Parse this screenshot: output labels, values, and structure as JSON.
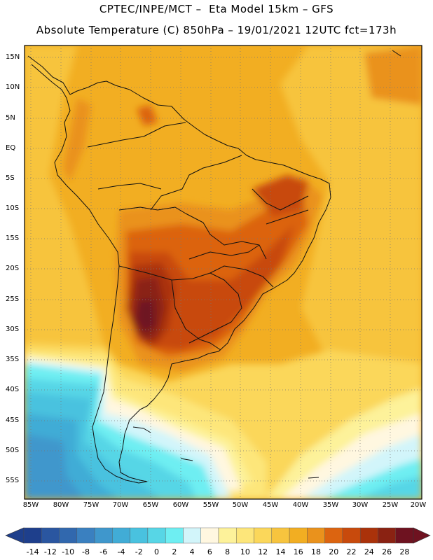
{
  "header": {
    "line1": "CPTEC/INPE/MCT –  Eta Model 15km – GFS",
    "line2": "Absolute Temperature (C) 850hPa – 19/01/2021 12UTC fct=173h"
  },
  "map": {
    "lat_labels": [
      "15N",
      "10N",
      "5N",
      "EQ",
      "5S",
      "10S",
      "15S",
      "20S",
      "25S",
      "30S",
      "35S",
      "40S",
      "45S",
      "50S",
      "55S"
    ],
    "lon_labels": [
      "85W",
      "80W",
      "75W",
      "70W",
      "65W",
      "60W",
      "55W",
      "50W",
      "45W",
      "40W",
      "35W",
      "30W",
      "25W",
      "20W"
    ]
  },
  "colorbar": {
    "labels": [
      "-14",
      "-12",
      "-10",
      "-8",
      "-6",
      "-4",
      "-2",
      "0",
      "2",
      "4",
      "6",
      "8",
      "10",
      "12",
      "14",
      "16",
      "18",
      "20",
      "22",
      "24",
      "26",
      "28"
    ],
    "colors": [
      "#1e3f8c",
      "#2a56a0",
      "#3168ae",
      "#3a80c0",
      "#3f97cc",
      "#41acd6",
      "#49c2df",
      "#57d6e6",
      "#6eeef2",
      "#d2f5fa",
      "#fff7e0",
      "#fdf29a",
      "#fde67a",
      "#fbd75a",
      "#f7c43e",
      "#f2ae22",
      "#ea921c",
      "#dc6410",
      "#c84a0c",
      "#aa320a",
      "#8a2212",
      "#6e1220"
    ]
  }
}
